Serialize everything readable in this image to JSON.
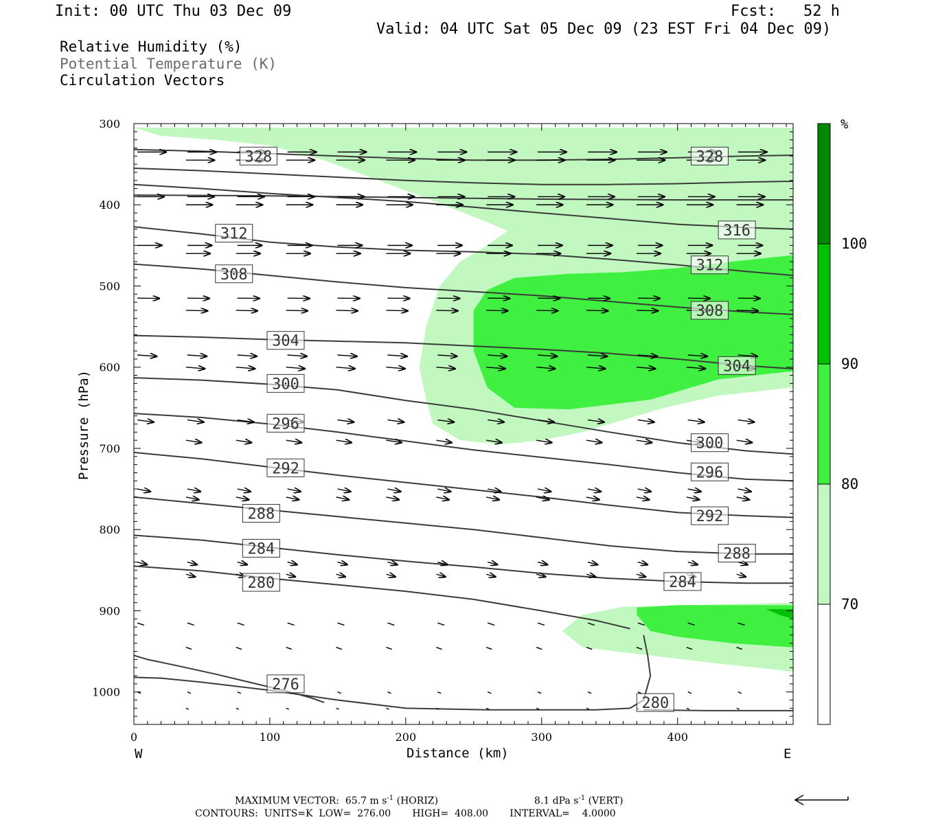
{
  "header": {
    "init": "Init: 00 UTC Thu 03 Dec 09",
    "fcst": "Fcst:   52 h",
    "valid": "Valid: 04 UTC Sat 05 Dec 09 (23 EST Fri 04 Dec 09)"
  },
  "legend": {
    "line1": "Relative Humidity (%)",
    "line2": "Potential Temperature (K)",
    "line3": "Circulation Vectors"
  },
  "chart_data": {
    "type": "contour",
    "xlabel": "Distance (km)",
    "ylabel": "Pressure (hPa)",
    "xlim": [
      0,
      485
    ],
    "ylim": [
      1040,
      300
    ],
    "x_ticks": [
      0,
      100,
      200,
      300,
      400
    ],
    "y_ticks": [
      300,
      400,
      500,
      600,
      700,
      800,
      900,
      1000
    ],
    "x_end_labels": {
      "left": "W",
      "right": "E"
    },
    "colors": {
      "rh70": "#c0f8c0",
      "rh80": "#40f040",
      "rh90": "#00c000",
      "rh100": "#008800",
      "theta_line": "#3a3a3a"
    },
    "colorbar": {
      "unit": "%",
      "levels": [
        70,
        80,
        90,
        100
      ],
      "colors": [
        "#ffffff",
        "#c0f8c0",
        "#40f040",
        "#00c000",
        "#008800"
      ]
    },
    "rh_regions": [
      {
        "level": 70,
        "points": [
          [
            0,
            305
          ],
          [
            485,
            305
          ],
          [
            485,
            975
          ],
          [
            430,
            965
          ],
          [
            380,
            955
          ],
          [
            330,
            945
          ],
          [
            315,
            925
          ],
          [
            330,
            905
          ],
          [
            360,
            895
          ],
          [
            485,
            890
          ],
          [
            485,
            625
          ],
          [
            430,
            635
          ],
          [
            390,
            650
          ],
          [
            330,
            680
          ],
          [
            300,
            690
          ],
          [
            270,
            695
          ],
          [
            240,
            690
          ],
          [
            220,
            670
          ],
          [
            215,
            640
          ],
          [
            210,
            600
          ],
          [
            215,
            550
          ],
          [
            225,
            500
          ],
          [
            240,
            470
          ],
          [
            260,
            450
          ],
          [
            275,
            432
          ],
          [
            255,
            418
          ],
          [
            220,
            395
          ],
          [
            180,
            370
          ],
          [
            140,
            345
          ],
          [
            100,
            327
          ],
          [
            60,
            320
          ],
          [
            20,
            315
          ],
          [
            0,
            305
          ]
        ]
      },
      {
        "level": 80,
        "points": [
          [
            485,
            462
          ],
          [
            440,
            470
          ],
          [
            400,
            478
          ],
          [
            360,
            483
          ],
          [
            320,
            485
          ],
          [
            280,
            490
          ],
          [
            260,
            505
          ],
          [
            250,
            530
          ],
          [
            250,
            580
          ],
          [
            260,
            625
          ],
          [
            280,
            650
          ],
          [
            320,
            652
          ],
          [
            380,
            640
          ],
          [
            430,
            615
          ],
          [
            485,
            605
          ]
        ]
      },
      {
        "level": 80,
        "points": [
          [
            370,
            896
          ],
          [
            400,
            893
          ],
          [
            485,
            893
          ],
          [
            485,
            945
          ],
          [
            440,
            940
          ],
          [
            400,
            932
          ],
          [
            380,
            925
          ],
          [
            370,
            905
          ]
        ]
      },
      {
        "level": 90,
        "points": [
          [
            465,
            898
          ],
          [
            485,
            898
          ],
          [
            485,
            910
          ],
          [
            475,
            905
          ]
        ]
      }
    ],
    "theta_contours": [
      {
        "value": 276,
        "x": [
          0,
          10,
          30,
          60,
          90,
          110,
          130,
          140
        ],
        "p": [
          955,
          960,
          967,
          978,
          990,
          998,
          1007,
          1013
        ]
      },
      {
        "value": 280,
        "x": [
          0,
          20,
          50,
          100,
          150,
          200,
          260,
          300,
          340,
          365,
          375,
          380,
          378,
          375
        ],
        "p": [
          982,
          983,
          988,
          998,
          1010,
          1020,
          1022,
          1022,
          1022,
          1020,
          1010,
          980,
          955,
          930
        ]
      },
      {
        "value": 280,
        "x": [
          0,
          50,
          100,
          150,
          200,
          250,
          300,
          340,
          365
        ],
        "p": [
          845,
          851,
          860,
          868,
          876,
          886,
          900,
          912,
          922
        ]
      },
      {
        "value": 280,
        "x": [
          375,
          420,
          485
        ],
        "p": [
          1022,
          1023,
          1023
        ]
      },
      {
        "value": 284,
        "x": [
          0,
          50,
          100,
          150,
          200,
          250,
          300,
          350,
          400,
          450,
          485
        ],
        "p": [
          807,
          813,
          822,
          831,
          839,
          846,
          854,
          860,
          864,
          866,
          866
        ]
      },
      {
        "value": 288,
        "x": [
          0,
          50,
          100,
          150,
          200,
          250,
          300,
          350,
          400,
          450,
          485
        ],
        "p": [
          760,
          768,
          776,
          784,
          792,
          800,
          810,
          820,
          827,
          830,
          830
        ]
      },
      {
        "value": 292,
        "x": [
          0,
          50,
          100,
          150,
          200,
          250,
          300,
          350,
          400,
          450,
          485
        ],
        "p": [
          705,
          713,
          723,
          733,
          742,
          751,
          760,
          770,
          779,
          783,
          785
        ]
      },
      {
        "value": 296,
        "x": [
          0,
          50,
          100,
          150,
          200,
          250,
          300,
          350,
          400,
          450,
          485
        ],
        "p": [
          657,
          662,
          670,
          680,
          691,
          702,
          711,
          720,
          730,
          738,
          740
        ]
      },
      {
        "value": 300,
        "x": [
          0,
          50,
          100,
          150,
          200,
          250,
          300,
          350,
          400,
          450,
          485
        ],
        "p": [
          613,
          616,
          621,
          628,
          641,
          652,
          666,
          680,
          693,
          703,
          707
        ]
      },
      {
        "value": 304,
        "x": [
          0,
          50,
          100,
          150,
          200,
          250,
          300,
          350,
          400,
          450,
          485
        ],
        "p": [
          561,
          563,
          566,
          568,
          570,
          574,
          578,
          583,
          590,
          598,
          602
        ]
      },
      {
        "value": 308,
        "x": [
          0,
          50,
          100,
          150,
          200,
          250,
          300,
          350,
          400,
          450,
          485
        ],
        "p": [
          473,
          479,
          487,
          495,
          502,
          507,
          512,
          519,
          526,
          532,
          535
        ]
      },
      {
        "value": 312,
        "x": [
          0,
          50,
          100,
          150,
          200,
          250,
          300,
          350,
          400,
          450,
          485
        ],
        "p": [
          427,
          436,
          446,
          452,
          456,
          458,
          461,
          467,
          474,
          482,
          487
        ]
      },
      {
        "value": 316,
        "x": [
          0,
          50,
          100,
          150,
          200,
          250,
          300,
          350,
          400,
          450,
          485
        ],
        "p": [
          375,
          380,
          386,
          391,
          396,
          403,
          410,
          417,
          424,
          428,
          430
        ]
      },
      {
        "value": 320,
        "x": [
          0,
          50,
          100,
          150,
          200,
          250,
          300,
          350,
          400,
          450,
          485
        ],
        "p": [
          355,
          358,
          362,
          366,
          370,
          373,
          375,
          375,
          374,
          372,
          371
        ]
      },
      {
        "value": 324,
        "x": [
          0,
          100,
          200,
          300,
          400,
          485
        ],
        "p": [
          388,
          389,
          391,
          393,
          394,
          394
        ]
      },
      {
        "value": 328,
        "x": [
          0,
          50,
          100,
          150,
          200,
          250,
          300,
          350,
          400,
          450,
          485
        ],
        "p": [
          332,
          334,
          337,
          340,
          343,
          345,
          345,
          344,
          342,
          340,
          339
        ]
      }
    ],
    "contour_labels": [
      {
        "text": "328",
        "x": 78,
        "p": 340
      },
      {
        "text": "328",
        "x": 410,
        "p": 340
      },
      {
        "text": "312",
        "x": 60,
        "p": 435
      },
      {
        "text": "316",
        "x": 430,
        "p": 431
      },
      {
        "text": "308",
        "x": 60,
        "p": 485
      },
      {
        "text": "312",
        "x": 410,
        "p": 474
      },
      {
        "text": "308",
        "x": 410,
        "p": 530
      },
      {
        "text": "304",
        "x": 98,
        "p": 567
      },
      {
        "text": "304",
        "x": 430,
        "p": 598
      },
      {
        "text": "300",
        "x": 98,
        "p": 620
      },
      {
        "text": "300",
        "x": 410,
        "p": 693
      },
      {
        "text": "296",
        "x": 98,
        "p": 669
      },
      {
        "text": "296",
        "x": 410,
        "p": 729
      },
      {
        "text": "292",
        "x": 98,
        "p": 724
      },
      {
        "text": "292",
        "x": 410,
        "p": 783
      },
      {
        "text": "288",
        "x": 80,
        "p": 780
      },
      {
        "text": "288",
        "x": 430,
        "p": 829
      },
      {
        "text": "284",
        "x": 80,
        "p": 823
      },
      {
        "text": "284",
        "x": 390,
        "p": 864
      },
      {
        "text": "280",
        "x": 80,
        "p": 865
      },
      {
        "text": "280",
        "x": 370,
        "p": 1013
      },
      {
        "text": "276",
        "x": 98,
        "p": 990
      }
    ],
    "vectors": {
      "levels_p": [
        335,
        345,
        390,
        400,
        450,
        460,
        515,
        530,
        585,
        600,
        665,
        690,
        750,
        760,
        840,
        855,
        915,
        945,
        1000,
        1020
      ],
      "note": "circulation vectors drawn as arrows; horizontal speed decreases downward"
    },
    "footer": {
      "max_vector": "MAXIMUM VECTOR:  65.7 m s",
      "horiz": "(HORIZ)",
      "vert_val": "8.1 dPa s",
      "vert": "(VERT)",
      "contours": "CONTOURS:  UNITS=K  LOW=  276.00       HIGH=  408.00       INTERVAL=    4.0000"
    }
  }
}
